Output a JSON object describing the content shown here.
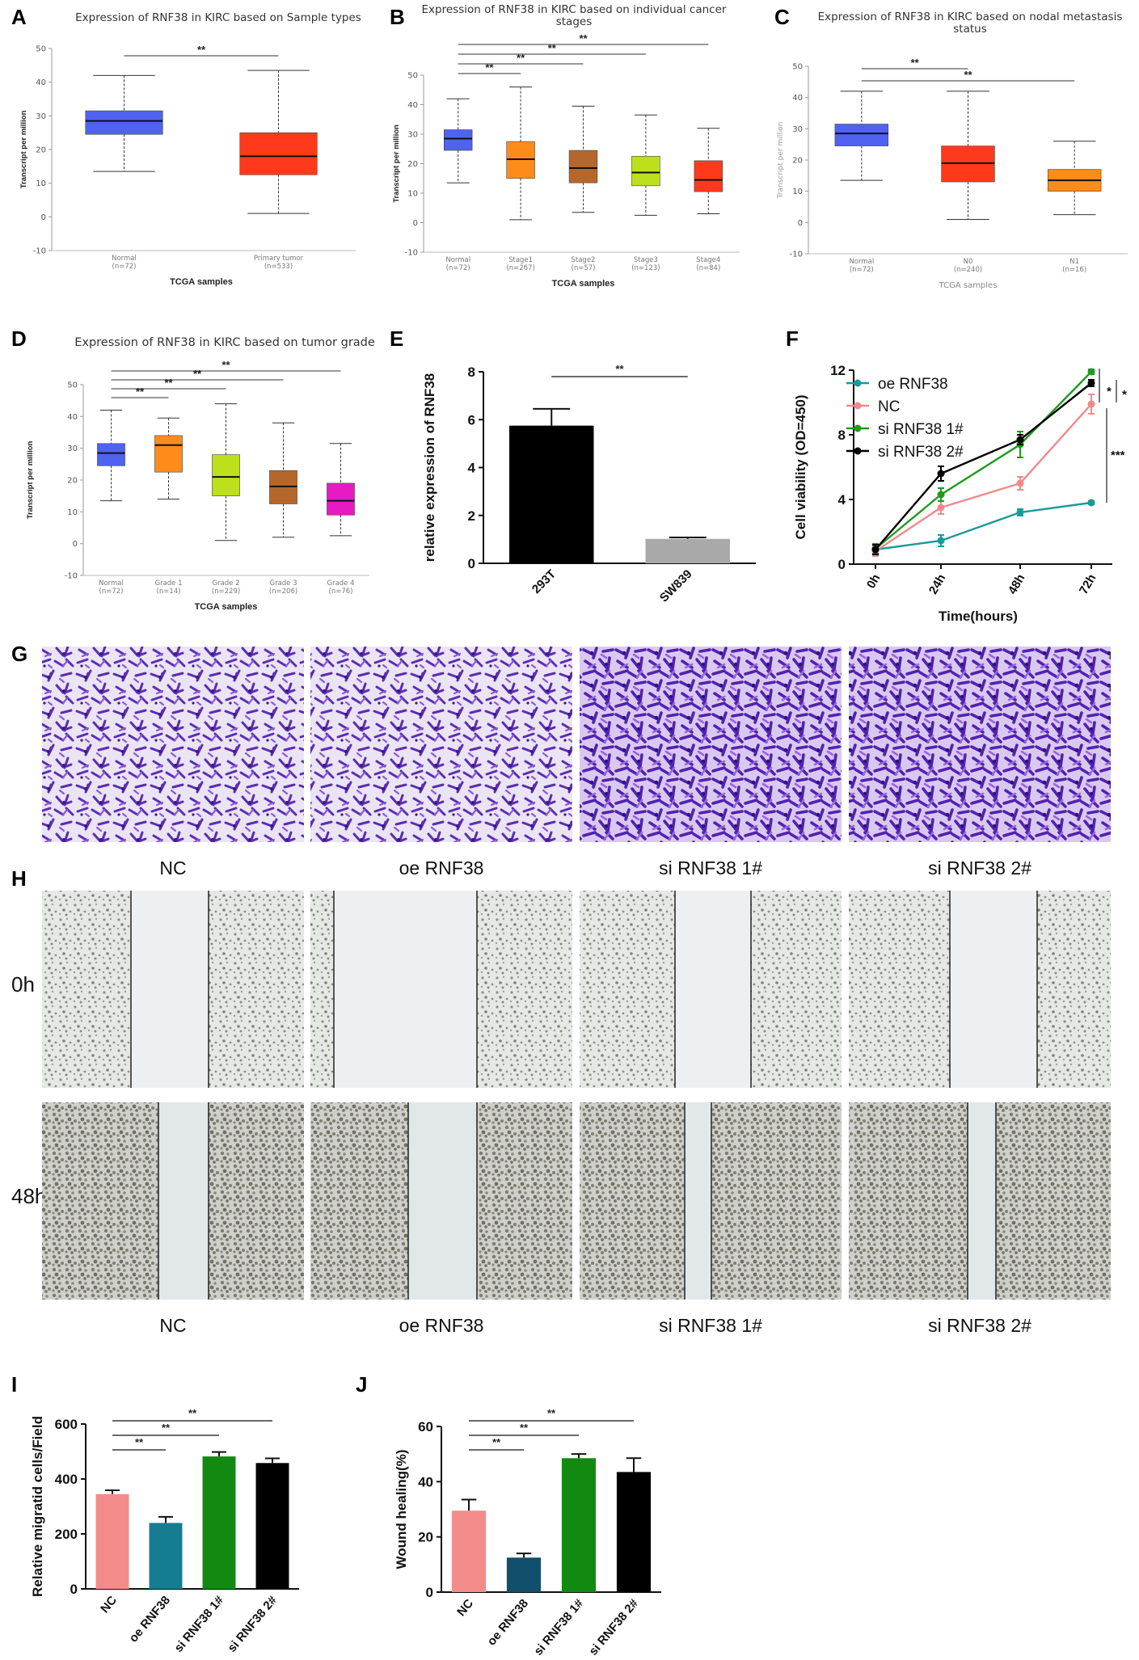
{
  "panel_letters": [
    "A",
    "B",
    "C",
    "D",
    "E",
    "F",
    "G",
    "H",
    "I",
    "J"
  ],
  "chart_data": [
    {
      "id": "A",
      "type": "box",
      "title": "Expression of RNF38 in KIRC based on Sample types",
      "xlabel": "TCGA samples",
      "ylabel": "Transcript per million",
      "ylim": [
        -10,
        50
      ],
      "yticks": [
        -10,
        0,
        10,
        20,
        30,
        40,
        50
      ],
      "categories": [
        "Normal",
        "Primary tumor"
      ],
      "counts": [
        "(n=72)",
        "(n=533)"
      ],
      "colors": [
        "#4f63f0",
        "#ff3a1c"
      ],
      "boxes": [
        {
          "min": 13.5,
          "q1": 24.5,
          "median": 28.5,
          "q3": 31.5,
          "max": 42
        },
        {
          "min": 1,
          "q1": 12.5,
          "median": 18,
          "q3": 25,
          "max": 43.5
        }
      ],
      "significance": [
        {
          "from": 0,
          "to": 1,
          "label": "**"
        }
      ]
    },
    {
      "id": "B",
      "type": "box",
      "title": "Expression of RNF38 in KIRC based on individual cancer stages",
      "title_lines": [
        "Expression of RNF38 in KIRC based on individual cancer",
        "stages"
      ],
      "xlabel": "TCGA samples",
      "ylabel": "Transcript per million",
      "ylim": [
        -10,
        50
      ],
      "yticks": [
        -10,
        0,
        10,
        20,
        30,
        40,
        50
      ],
      "categories": [
        "Normal",
        "Stage1",
        "Stage2",
        "Stage3",
        "Stage4"
      ],
      "counts": [
        "(n=72)",
        "(n=267)",
        "(n=57)",
        "(n=123)",
        "(n=84)"
      ],
      "colors": [
        "#4f63f0",
        "#ff8c1a",
        "#b5672b",
        "#bde01c",
        "#ff3a1c"
      ],
      "boxes": [
        {
          "min": 13.5,
          "q1": 24.5,
          "median": 28.5,
          "q3": 31.5,
          "max": 42
        },
        {
          "min": 1,
          "q1": 15,
          "median": 21.5,
          "q3": 27.5,
          "max": 46
        },
        {
          "min": 3.5,
          "q1": 13.5,
          "median": 18.5,
          "q3": 24.5,
          "max": 39.5
        },
        {
          "min": 2.5,
          "q1": 12.5,
          "median": 17,
          "q3": 22.5,
          "max": 36.5
        },
        {
          "min": 3,
          "q1": 10.5,
          "median": 14.5,
          "q3": 21,
          "max": 32
        }
      ],
      "significance": [
        {
          "from": 0,
          "to": 1,
          "label": "**"
        },
        {
          "from": 0,
          "to": 2,
          "label": "**"
        },
        {
          "from": 0,
          "to": 3,
          "label": "**"
        },
        {
          "from": 0,
          "to": 4,
          "label": "**"
        }
      ]
    },
    {
      "id": "C",
      "type": "box",
      "title": "Expression of RNF38 in KIRC based on nodal metastasis status",
      "title_lines": [
        "Expression of RNF38 in KIRC based on nodal metastasis",
        "status"
      ],
      "xlabel": "TCGA samples",
      "ylabel": "Transcript per million",
      "ylim": [
        -10,
        50
      ],
      "yticks": [
        -10,
        0,
        10,
        20,
        30,
        40,
        50
      ],
      "categories": [
        "Normal",
        "N0",
        "N1"
      ],
      "counts": [
        "(n=72)",
        "(n=240)",
        "(n=16)"
      ],
      "colors": [
        "#4f63f0",
        "#ff3a1c",
        "#ff8c1a"
      ],
      "boxes": [
        {
          "min": 13.5,
          "q1": 24.5,
          "median": 28.5,
          "q3": 31.5,
          "max": 42
        },
        {
          "min": 1,
          "q1": 13,
          "median": 19,
          "q3": 24.5,
          "max": 42
        },
        {
          "min": 2.5,
          "q1": 10,
          "median": 13.5,
          "q3": 17,
          "max": 26
        }
      ],
      "significance": [
        {
          "from": 0,
          "to": 1,
          "label": "**"
        },
        {
          "from": 0,
          "to": 2,
          "label": "**"
        }
      ]
    },
    {
      "id": "D",
      "type": "box",
      "title": "Expression of RNF38 in KIRC based on tumor grade",
      "xlabel": "TCGA samples",
      "ylabel": "Transcript per million",
      "ylim": [
        -10,
        50
      ],
      "yticks": [
        -10,
        0,
        10,
        20,
        30,
        40,
        50
      ],
      "categories": [
        "Normal",
        "Grade 1",
        "Grade 2",
        "Grade 3",
        "Grade 4"
      ],
      "counts": [
        "(n=72)",
        "(n=14)",
        "(n=229)",
        "(n=206)",
        "(n=76)"
      ],
      "colors": [
        "#4f63f0",
        "#ff8c1a",
        "#bde01c",
        "#b5672b",
        "#e61bc4"
      ],
      "boxes": [
        {
          "min": 13.5,
          "q1": 24.5,
          "median": 28.5,
          "q3": 31.5,
          "max": 42
        },
        {
          "min": 14,
          "q1": 22.5,
          "median": 31,
          "q3": 34,
          "max": 39.5
        },
        {
          "min": 1,
          "q1": 15,
          "median": 21,
          "q3": 28,
          "max": 44
        },
        {
          "min": 2,
          "q1": 12.5,
          "median": 18,
          "q3": 23,
          "max": 38
        },
        {
          "min": 2.5,
          "q1": 9,
          "median": 13.5,
          "q3": 19,
          "max": 31.5
        }
      ],
      "significance": [
        {
          "from": 0,
          "to": 1,
          "label": "**"
        },
        {
          "from": 0,
          "to": 2,
          "label": "**"
        },
        {
          "from": 0,
          "to": 3,
          "label": "**"
        },
        {
          "from": 0,
          "to": 4,
          "label": "**"
        }
      ]
    },
    {
      "id": "E",
      "type": "bar",
      "ylabel": "relative expression of RNF38",
      "ylim": [
        0,
        8
      ],
      "yticks": [
        0,
        2,
        4,
        6,
        8
      ],
      "categories": [
        "293T",
        "SW839"
      ],
      "values": [
        5.75,
        1.02
      ],
      "errors": [
        0.7,
        0.06
      ],
      "colors": [
        "#000000",
        "#a9a9a9"
      ],
      "significance": [
        {
          "from": 0,
          "to": 1,
          "label": "**"
        }
      ]
    },
    {
      "id": "F",
      "type": "line",
      "xlabel": "Time(hours)",
      "ylabel": "Cell viability (OD=450)",
      "ylim": [
        0,
        12
      ],
      "yticks": [
        0,
        4,
        8,
        12
      ],
      "categories": [
        "0h",
        "24h",
        "48h",
        "72h"
      ],
      "series": [
        {
          "name": "oe RNF38",
          "color": "#1a9a9a",
          "values": [
            0.9,
            1.45,
            3.2,
            3.8
          ],
          "errors": [
            0.2,
            0.35,
            0.2,
            0.1
          ]
        },
        {
          "name": "NC",
          "color": "#f08a8a",
          "values": [
            0.8,
            3.5,
            5.0,
            9.9
          ],
          "errors": [
            0.3,
            0.4,
            0.4,
            0.6
          ]
        },
        {
          "name": "si RNF38 1#",
          "color": "#1f9a1f",
          "values": [
            0.95,
            4.3,
            7.4,
            11.9
          ],
          "errors": [
            0.3,
            0.4,
            0.8,
            0.15
          ]
        },
        {
          "name": "si RNF38 2#",
          "color": "#000000",
          "values": [
            0.9,
            5.6,
            7.7,
            11.2
          ],
          "errors": [
            0.3,
            0.45,
            0.3,
            0.2
          ]
        }
      ],
      "significance": [
        "*",
        "*",
        "***"
      ]
    },
    {
      "id": "I",
      "type": "bar",
      "ylabel": "Relative migratid cells/Field",
      "ylim": [
        0,
        600
      ],
      "yticks": [
        0,
        200,
        400,
        600
      ],
      "categories": [
        "NC",
        "oe RNF38",
        "si RNF38 1#",
        "si RNF38 2#"
      ],
      "values": [
        345,
        240,
        482,
        458
      ],
      "errors": [
        14,
        22,
        16,
        17
      ],
      "colors": [
        "#f48b8b",
        "#157c92",
        "#128a12",
        "#000000"
      ],
      "significance": [
        {
          "from": 0,
          "to": 1,
          "label": "**"
        },
        {
          "from": 0,
          "to": 2,
          "label": "**"
        },
        {
          "from": 0,
          "to": 3,
          "label": "**"
        }
      ]
    },
    {
      "id": "J",
      "type": "bar",
      "ylabel": "Wound healing(%)",
      "ylim": [
        0,
        60
      ],
      "yticks": [
        0,
        20,
        40,
        60
      ],
      "categories": [
        "NC",
        "oe RNF38",
        "si RNF38 1#",
        "si RNF38 2#"
      ],
      "values": [
        29.5,
        12.5,
        48.5,
        43.5
      ],
      "errors": [
        4.0,
        1.5,
        1.5,
        5.0
      ],
      "colors": [
        "#f48b8b",
        "#124f6d",
        "#128a12",
        "#000000"
      ],
      "significance": [
        {
          "from": 0,
          "to": 1,
          "label": "**"
        },
        {
          "from": 0,
          "to": 2,
          "label": "**"
        },
        {
          "from": 0,
          "to": 3,
          "label": "**"
        }
      ]
    }
  ],
  "panel_G": {
    "captions": [
      "NC",
      "oe RNF38",
      "si RNF38 1#",
      "si RNF38 2#"
    ],
    "stain_color": "#7a3fc9"
  },
  "panel_H": {
    "rows": [
      "0h",
      "48h"
    ],
    "captions": [
      "NC",
      "oe RNF38",
      "si RNF38 1#",
      "si RNF38 2#"
    ]
  }
}
